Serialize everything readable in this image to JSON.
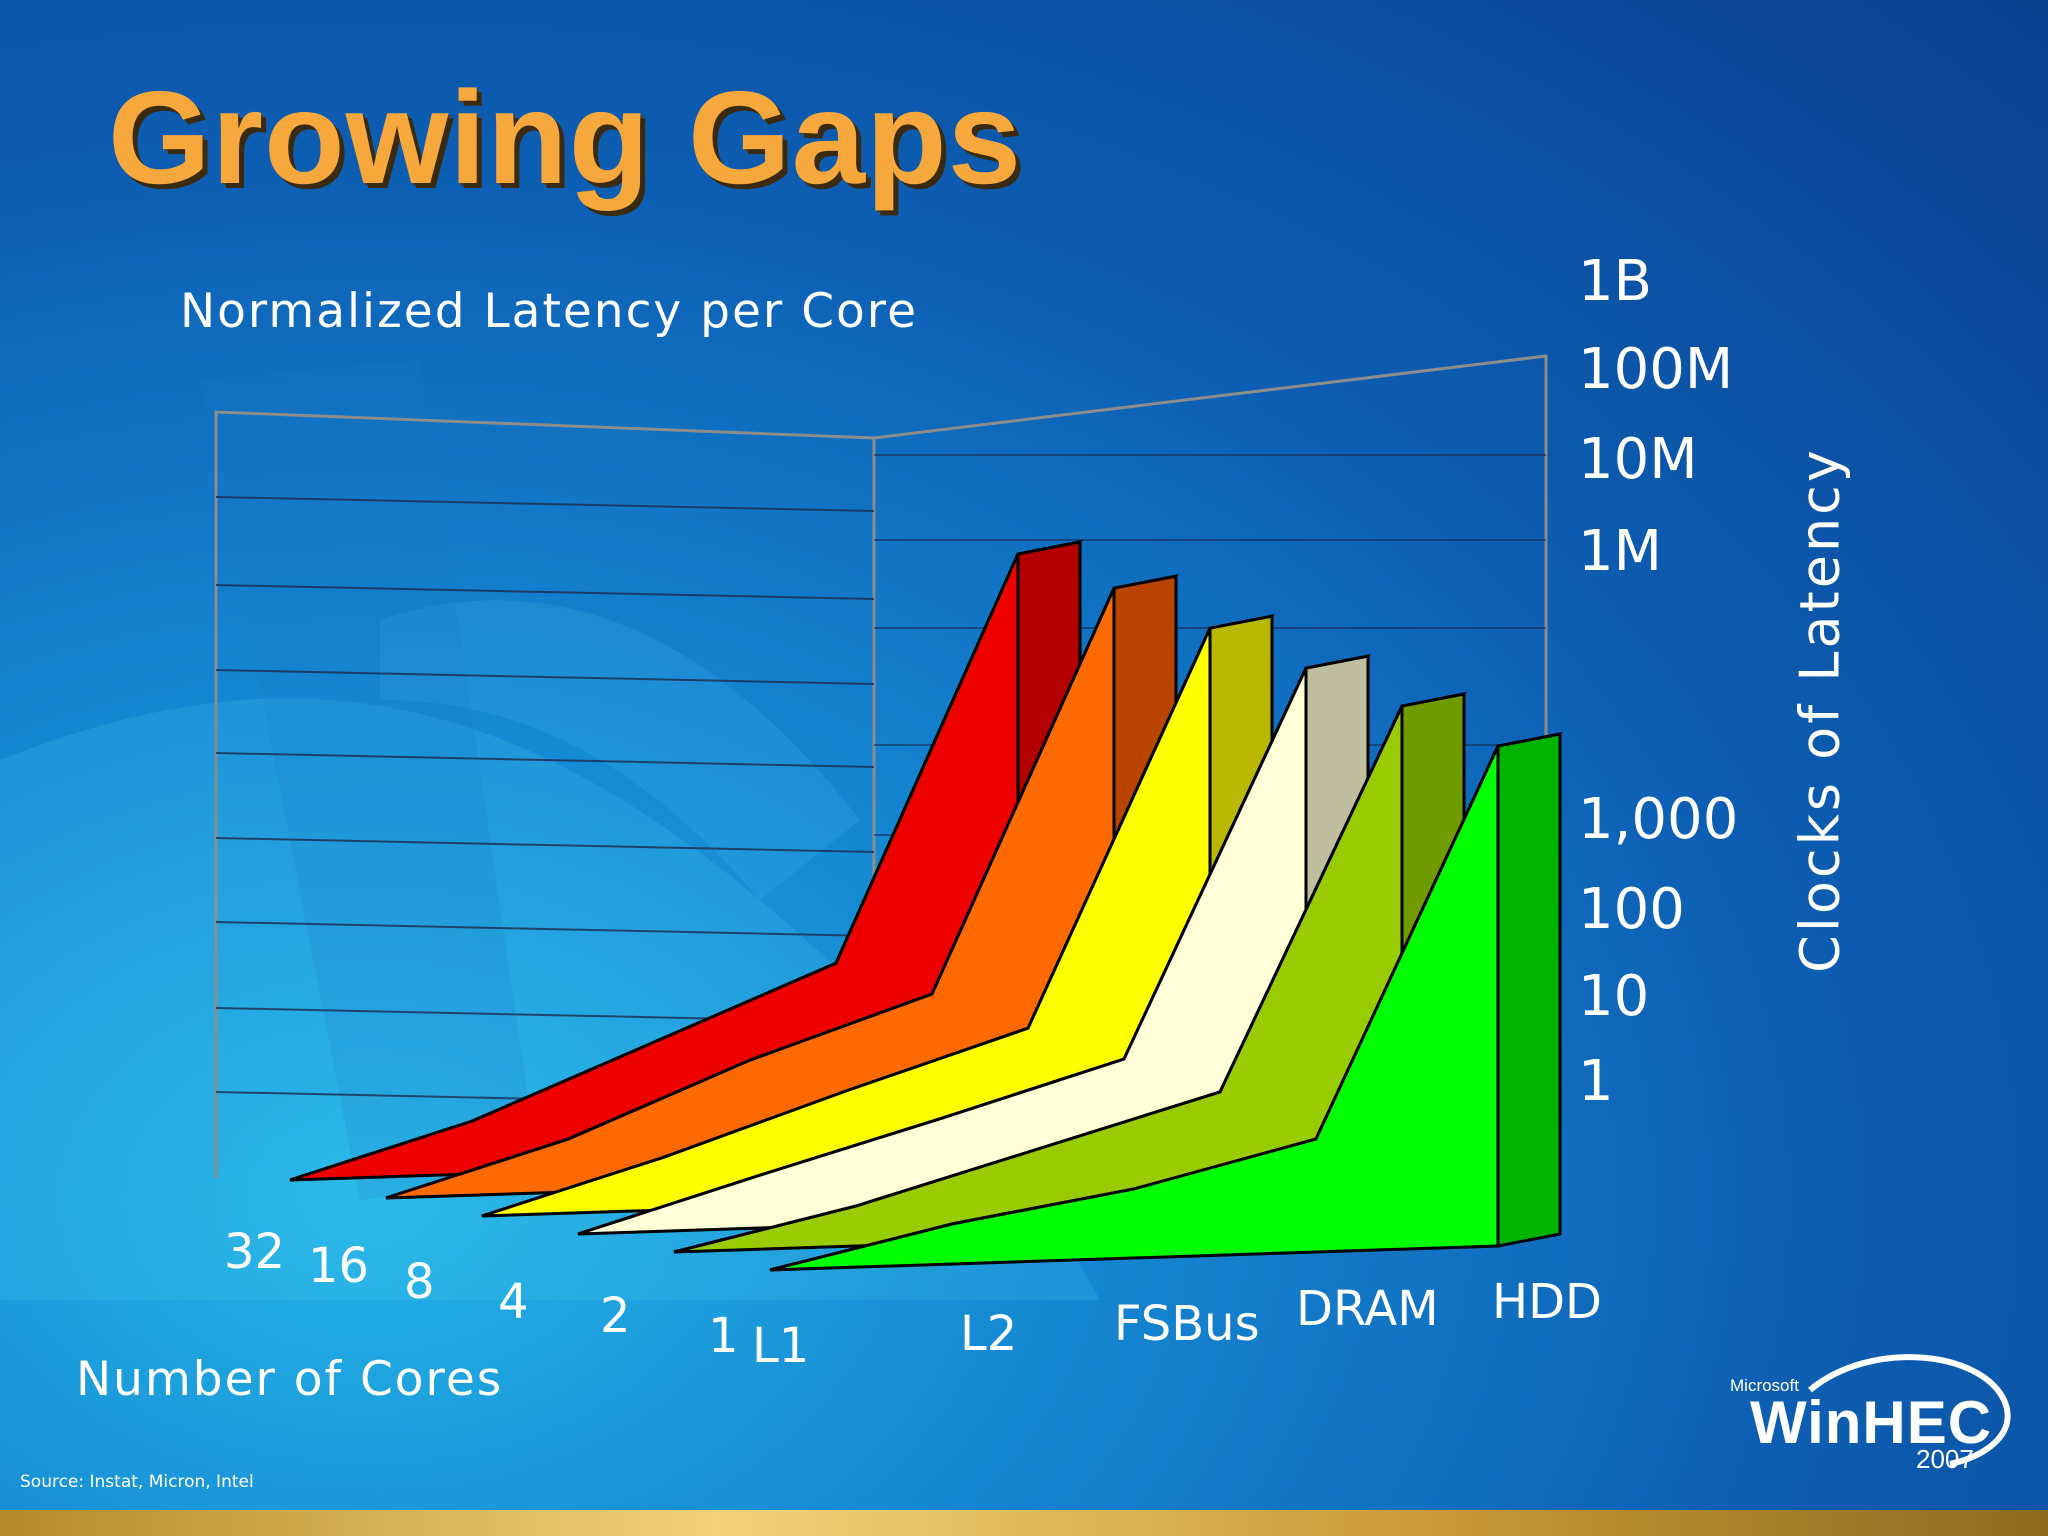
{
  "slide": {
    "title": "Growing Gaps",
    "subtitle": "Normalized Latency per Core",
    "source": "Source: Instat, Micron, Intel"
  },
  "logo": {
    "small": "Microsoft",
    "main": "WinHEC",
    "year": "2007"
  },
  "chart_data": {
    "type": "area",
    "subtype": "3d-area",
    "title": "Normalized Latency per Core",
    "xlabel": "",
    "zlabel": "Number of Cores",
    "ylabel": "Clocks of Latency",
    "y_scale": "log",
    "y_tick_labels": [
      "1",
      "10",
      "100",
      "1,000",
      "1M",
      "10M",
      "100M",
      "1B"
    ],
    "categories": [
      "L1",
      "L2",
      "FSBus",
      "DRAM",
      "HDD"
    ],
    "cores": [
      "32",
      "16",
      "8",
      "4",
      "2",
      "1"
    ],
    "series": [
      {
        "name": "32",
        "values": [
          1,
          3,
          30,
          300,
          100000000
        ],
        "top_color": "#b50000",
        "front_color": "#ee0000"
      },
      {
        "name": "16",
        "values": [
          1,
          3,
          30,
          200,
          60000000
        ],
        "top_color": "#b84400",
        "front_color": "#ff6a00"
      },
      {
        "name": "8",
        "values": [
          1,
          3,
          20,
          120,
          30000000
        ],
        "top_color": "#b8b800",
        "front_color": "#ffff00"
      },
      {
        "name": "4",
        "values": [
          1,
          3,
          15,
          80,
          15000000
        ],
        "top_color": "#bfbfa0",
        "front_color": "#ffffd8"
      },
      {
        "name": "2",
        "values": [
          1,
          2,
          10,
          50,
          8000000
        ],
        "top_color": "#6f9a00",
        "front_color": "#99cc00"
      },
      {
        "name": "1",
        "values": [
          1,
          2,
          5,
          20,
          4000000
        ],
        "top_color": "#00b400",
        "front_color": "#00ff00"
      }
    ],
    "grid": true,
    "legend": "none"
  }
}
